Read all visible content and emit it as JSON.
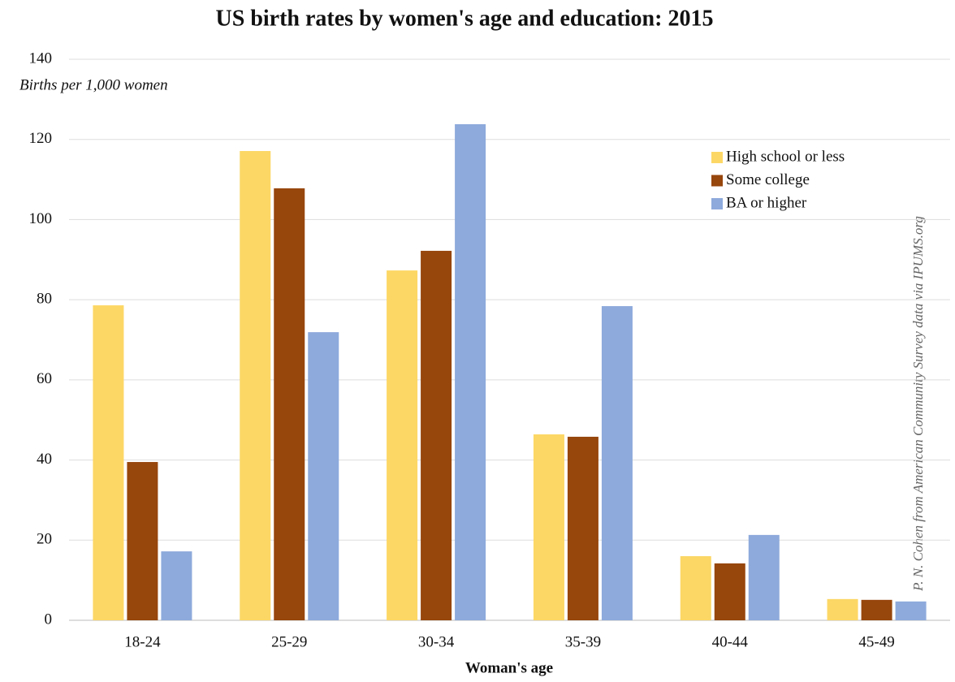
{
  "chart_data": {
    "type": "bar",
    "title": "US birth rates by women's age and education: 2015",
    "y_label": "Births per 1,000 women",
    "x_label": "Woman's age",
    "source": "P. N. Cohen from American Community Survey data via IPUMS.org",
    "categories": [
      "18-24",
      "25-29",
      "30-34",
      "35-39",
      "40-44",
      "45-49"
    ],
    "series": [
      {
        "name": "High school or less",
        "color": "#fcd765",
        "values": [
          78.6,
          117.1,
          87.3,
          46.4,
          16.0,
          5.3
        ]
      },
      {
        "name": "Some college",
        "color": "#97460c",
        "values": [
          39.5,
          107.8,
          92.2,
          45.8,
          14.2,
          5.1
        ]
      },
      {
        "name": "BA or higher",
        "color": "#8eaadc",
        "values": [
          17.2,
          71.9,
          123.8,
          78.4,
          21.3,
          4.7
        ]
      }
    ],
    "ylim": [
      0,
      140
    ],
    "yticks": [
      0,
      20,
      40,
      60,
      80,
      100,
      120,
      140
    ],
    "grid": true,
    "legend": "top-right"
  }
}
